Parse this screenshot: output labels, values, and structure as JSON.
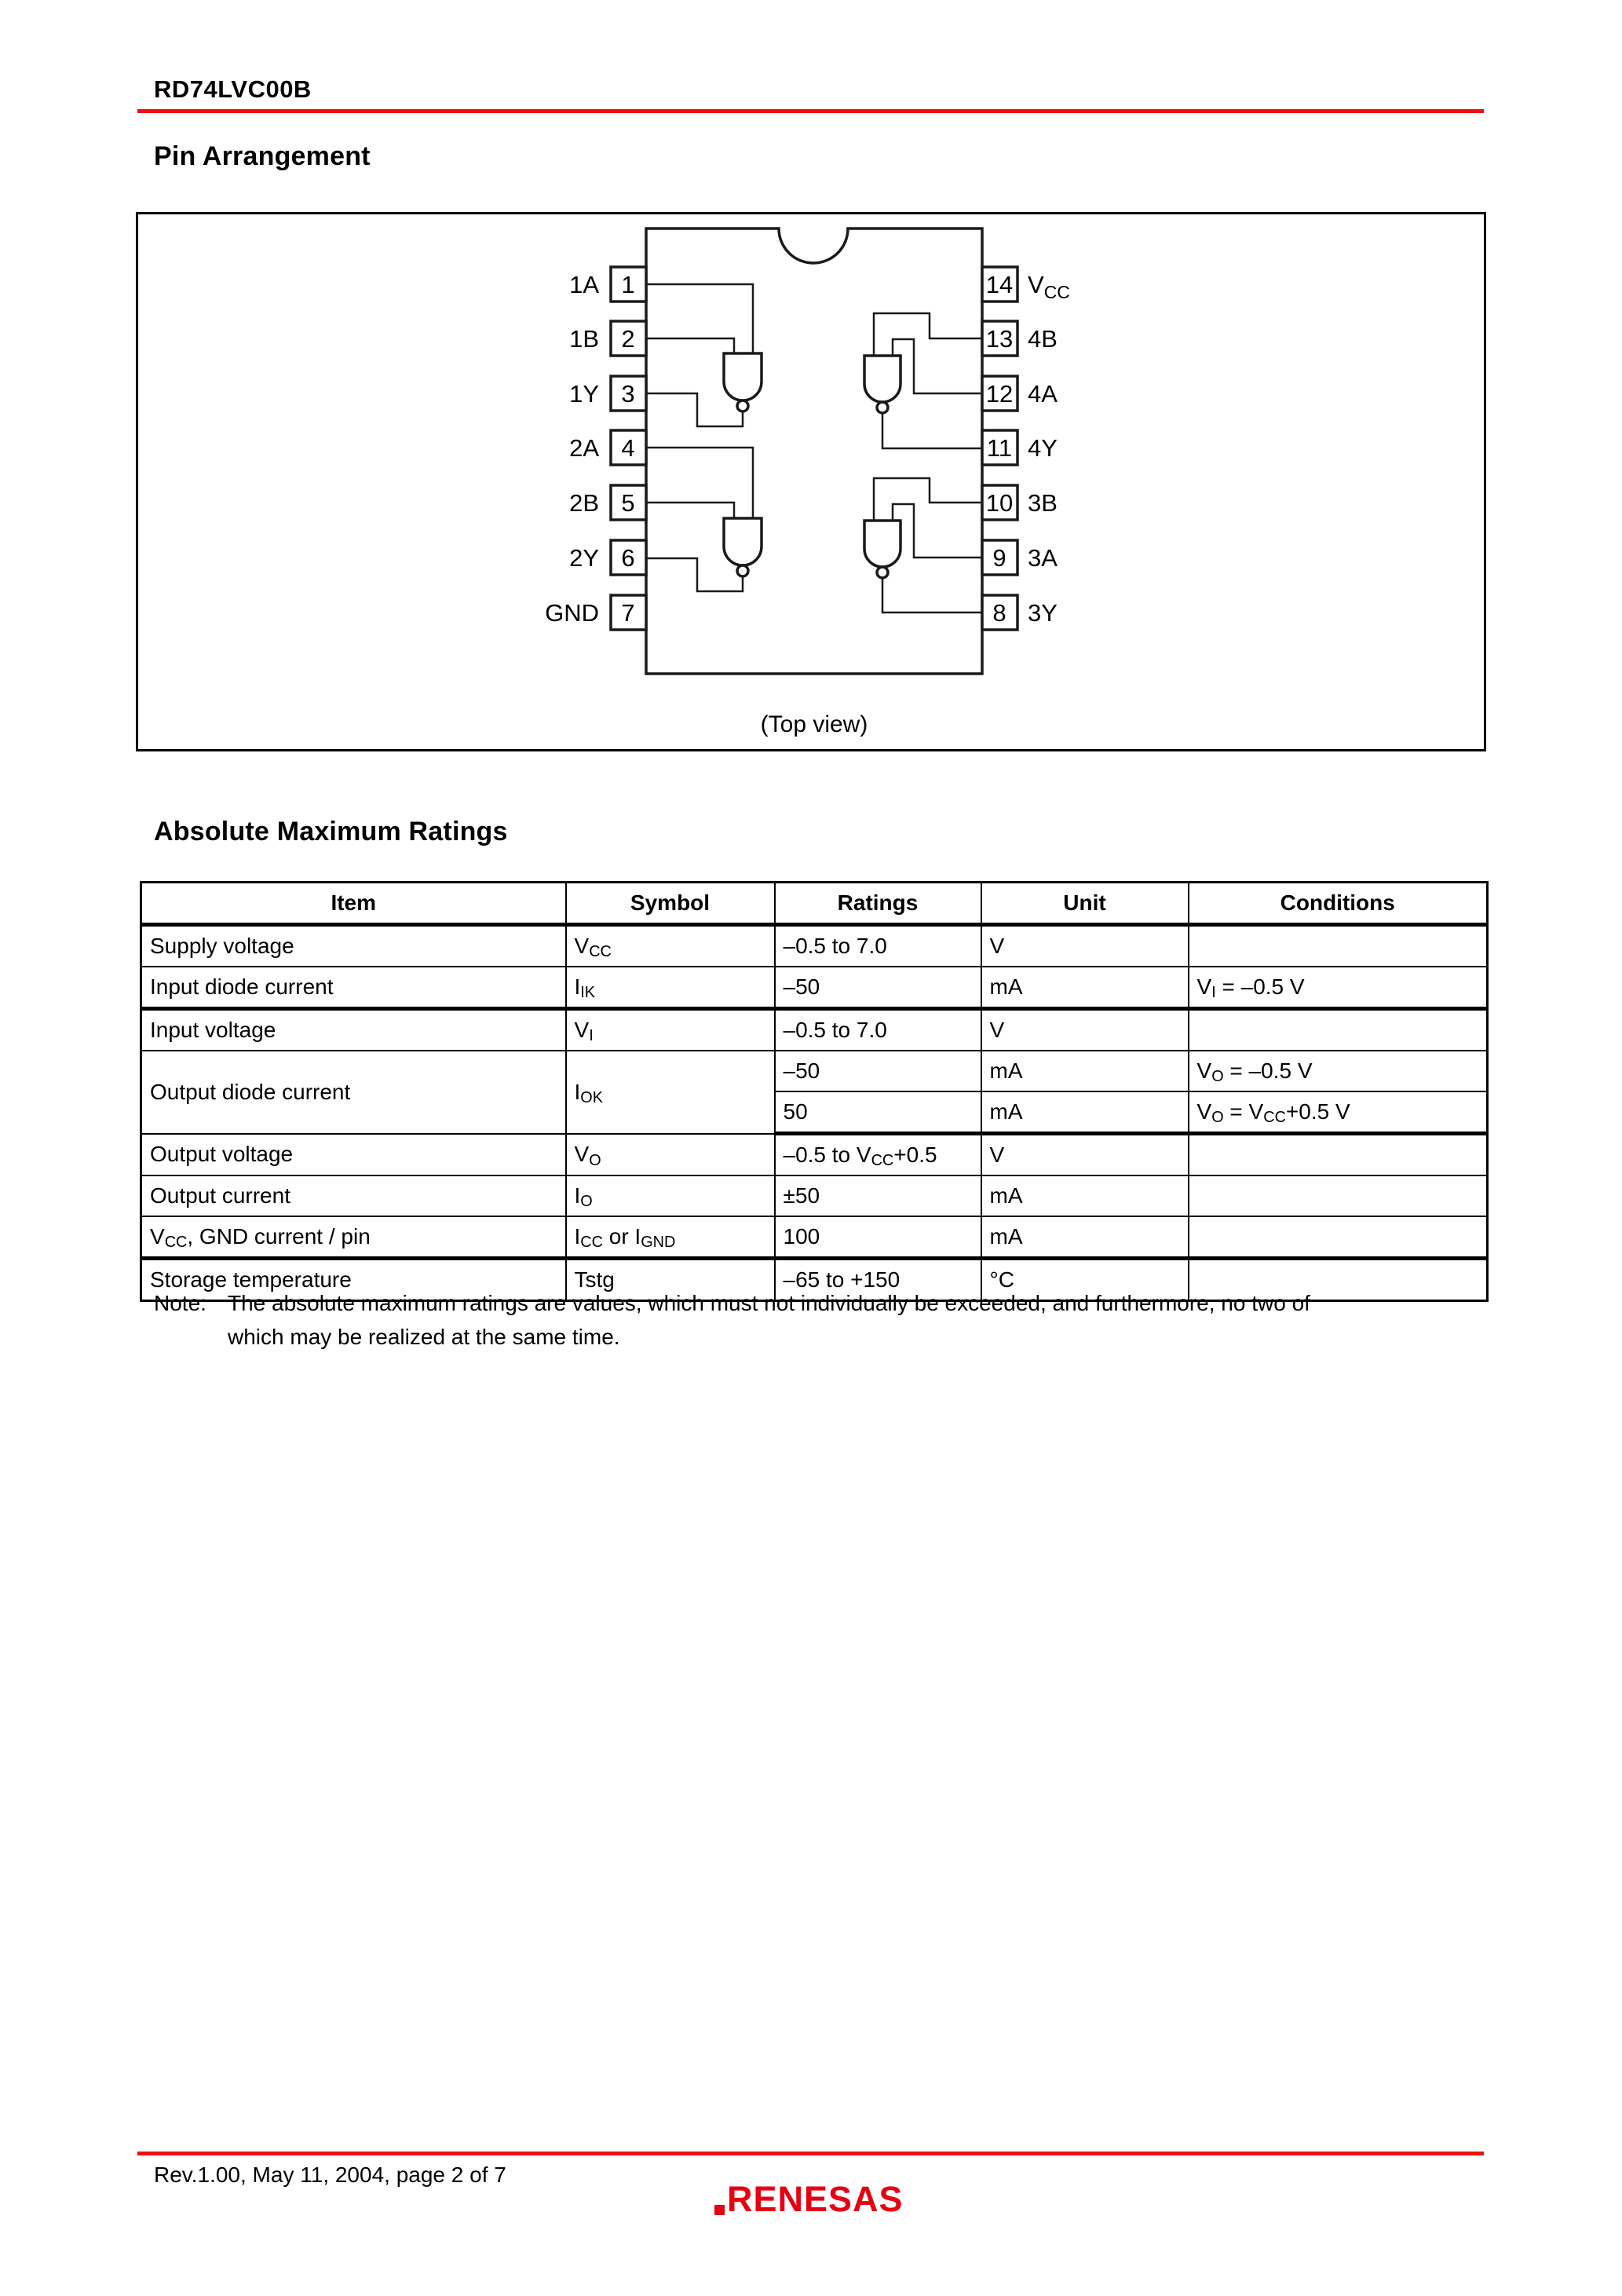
{
  "page": {
    "header_title": "RD74LVC00B",
    "footer_text": "Rev.1.00,  May 11, 2004,  page 2 of 7",
    "logo_text": "RENESAS"
  },
  "colors": {
    "rule_red": "#ee0f0f",
    "logo_red": "#e60012",
    "line_black": "#1a1a1a"
  },
  "pin_arrangement": {
    "section_title": "Pin Arrangement",
    "caption": "(Top view)",
    "left_pins": [
      {
        "num": "1",
        "label": "1A"
      },
      {
        "num": "2",
        "label": "1B"
      },
      {
        "num": "3",
        "label": "1Y"
      },
      {
        "num": "4",
        "label": "2A"
      },
      {
        "num": "5",
        "label": "2B"
      },
      {
        "num": "6",
        "label": "2Y"
      },
      {
        "num": "7",
        "label": "GND"
      }
    ],
    "right_pins": [
      {
        "num": "14",
        "label_main": "V",
        "label_sub": "CC"
      },
      {
        "num": "13",
        "label": "4B"
      },
      {
        "num": "12",
        "label": "4A"
      },
      {
        "num": "11",
        "label": "4Y"
      },
      {
        "num": "10",
        "label": "3B"
      },
      {
        "num": "9",
        "label": "3A"
      },
      {
        "num": "8",
        "label": "3Y"
      }
    ]
  },
  "abs_max": {
    "section_title": "Absolute Maximum Ratings",
    "headers": [
      "Item",
      "Symbol",
      "Ratings",
      "Unit",
      "Conditions"
    ],
    "rows": [
      {
        "item": [
          {
            "t": "Supply voltage"
          }
        ],
        "symbol": [
          {
            "t": "V"
          },
          {
            "t": "CC",
            "sub": true
          }
        ],
        "ratings": [
          {
            "t": "–0.5 to 7.0"
          }
        ],
        "unit": [
          {
            "t": "V"
          }
        ],
        "cond": []
      },
      {
        "item": [
          {
            "t": "Input diode current"
          }
        ],
        "symbol": [
          {
            "t": "I"
          },
          {
            "t": "IK",
            "sub": true
          }
        ],
        "ratings": [
          {
            "t": "–50"
          }
        ],
        "unit": [
          {
            "t": "mA"
          }
        ],
        "cond": [
          {
            "t": "V"
          },
          {
            "t": "I",
            "sub": true
          },
          {
            "t": " = –0.5 V"
          }
        ]
      },
      {
        "item": [
          {
            "t": "Input voltage"
          }
        ],
        "symbol": [
          {
            "t": "V"
          },
          {
            "t": "I",
            "sub": true
          }
        ],
        "ratings": [
          {
            "t": "–0.5 to 7.0"
          }
        ],
        "unit": [
          {
            "t": "V"
          }
        ],
        "cond": []
      },
      {
        "item": [
          {
            "t": "Output diode current"
          }
        ],
        "symbol": [
          {
            "t": "I"
          },
          {
            "t": "OK",
            "sub": true
          }
        ],
        "ratings": [
          {
            "t": "–50"
          }
        ],
        "unit": [
          {
            "t": "mA"
          }
        ],
        "cond": [
          {
            "t": "V"
          },
          {
            "t": "O",
            "sub": true
          },
          {
            "t": " = –0.5 V"
          }
        ]
      },
      {
        "item": null,
        "symbol": null,
        "ratings": [
          {
            "t": "50"
          }
        ],
        "unit": [
          {
            "t": "mA"
          }
        ],
        "cond": [
          {
            "t": "V"
          },
          {
            "t": "O",
            "sub": true
          },
          {
            "t": " = V"
          },
          {
            "t": "CC",
            "sub": true
          },
          {
            "t": "+0.5 V"
          }
        ]
      },
      {
        "item": [
          {
            "t": "Output voltage"
          }
        ],
        "symbol": [
          {
            "t": "V"
          },
          {
            "t": "O",
            "sub": true
          }
        ],
        "ratings": [
          {
            "t": "–0.5 to V"
          },
          {
            "t": "CC",
            "sub": true
          },
          {
            "t": "+0.5"
          }
        ],
        "unit": [
          {
            "t": "V"
          }
        ],
        "cond": []
      },
      {
        "item": [
          {
            "t": "Output current"
          }
        ],
        "symbol": [
          {
            "t": "I"
          },
          {
            "t": "O",
            "sub": true
          }
        ],
        "ratings": [
          {
            "t": "±50"
          }
        ],
        "unit": [
          {
            "t": "mA"
          }
        ],
        "cond": []
      },
      {
        "item": [
          {
            "t": "V"
          },
          {
            "t": "CC",
            "sub": true
          },
          {
            "t": ", GND current / pin"
          }
        ],
        "symbol": [
          {
            "t": "I"
          },
          {
            "t": "CC",
            "sub": true
          },
          {
            "t": " or I"
          },
          {
            "t": "GND",
            "sub": true
          }
        ],
        "ratings": [
          {
            "t": "100"
          }
        ],
        "unit": [
          {
            "t": "mA"
          }
        ],
        "cond": []
      },
      {
        "item": [
          {
            "t": "Storage temperature"
          }
        ],
        "symbol": [
          {
            "t": "Tstg"
          }
        ],
        "ratings": [
          {
            "t": "–65 to +150"
          }
        ],
        "unit": [
          {
            "t": "°C"
          }
        ],
        "cond": []
      }
    ],
    "note_label": "Note:",
    "note_line1": "The absolute maximum ratings are values, which must not individually be exceeded, and furthermore, no two of",
    "note_line2": "which may be realized at the same time."
  }
}
